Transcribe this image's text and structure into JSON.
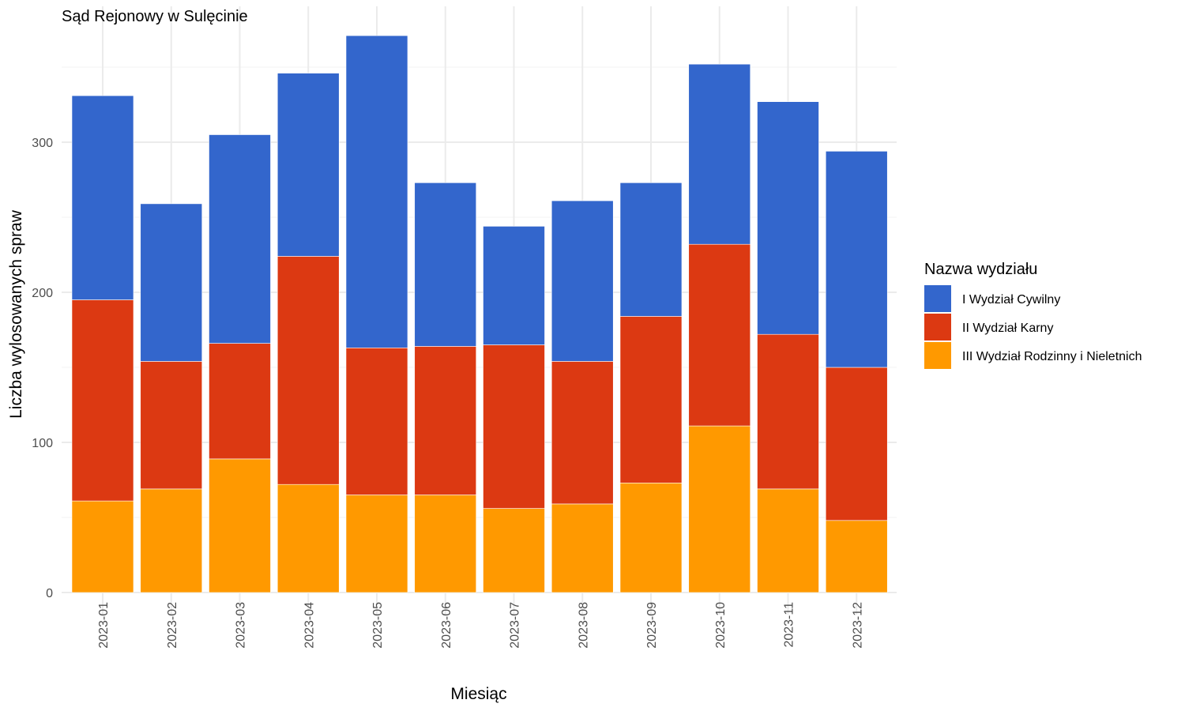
{
  "chart_data": {
    "type": "bar",
    "stacked": true,
    "title": "Sąd Rejonowy w Sulęcinie",
    "xlabel": "Miesiąc",
    "ylabel": "Liczba wylosowanych spraw",
    "ylim": [
      0,
      390
    ],
    "yticks": [
      "0",
      "100",
      "200",
      "300"
    ],
    "grid": true,
    "legend": {
      "title": "Nazwa wydziału",
      "placement": "right"
    },
    "categories": [
      "2023-01",
      "2023-02",
      "2023-03",
      "2023-04",
      "2023-05",
      "2023-06",
      "2023-07",
      "2023-08",
      "2023-09",
      "2023-10",
      "2023-11",
      "2023-12"
    ],
    "series": [
      {
        "name": "III Wydział Rodzinny i Nieletnich",
        "color": "#ff9900",
        "values": [
          61,
          69,
          89,
          72,
          65,
          65,
          56,
          59,
          73,
          111,
          69,
          48
        ]
      },
      {
        "name": "II Wydział Karny",
        "color": "#dc3912",
        "values": [
          134,
          85,
          77,
          152,
          98,
          99,
          109,
          95,
          111,
          121,
          103,
          102
        ]
      },
      {
        "name": "I Wydział Cywilny",
        "color": "#3366cc",
        "values": [
          136,
          105,
          139,
          122,
          208,
          109,
          79,
          107,
          89,
          120,
          155,
          144
        ]
      }
    ],
    "legend_order": [
      "I Wydział Cywilny",
      "II Wydział Karny",
      "III Wydział Rodzinny i Nieletnich"
    ]
  }
}
